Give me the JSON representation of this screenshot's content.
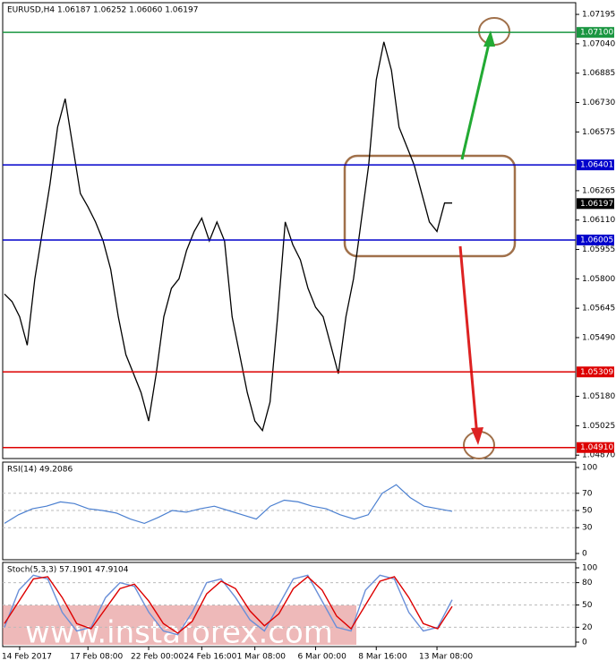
{
  "chart_data": [
    {
      "type": "line",
      "title": "EURUSD,H4  1.06187 1.06252 1.06060 1.06197",
      "color": "#000000",
      "categories": [
        null,
        null,
        "14 Feb 2017",
        null,
        null,
        null,
        null,
        null,
        null,
        null,
        null,
        "17 Feb 08:00",
        null,
        null,
        null,
        null,
        null,
        null,
        null,
        "22 Feb 00:00",
        null,
        null,
        null,
        null,
        null,
        null,
        "24 Feb 16:00",
        null,
        null,
        null,
        null,
        null,
        null,
        "1 Mar 08:00",
        null,
        null,
        null,
        null,
        null,
        null,
        null,
        "6 Mar 00:00",
        null,
        null,
        null,
        null,
        null,
        null,
        null,
        "8 Mar 16:00",
        null,
        null,
        null,
        null,
        null,
        null,
        null,
        "13 Mar 08:00",
        null,
        null
      ],
      "values": [
        1.0572,
        1.0568,
        1.056,
        1.0545,
        1.058,
        1.0605,
        1.063,
        1.066,
        1.0675,
        1.065,
        1.0625,
        1.0618,
        1.061,
        1.06,
        1.0585,
        1.056,
        1.054,
        1.053,
        1.052,
        1.0505,
        1.053,
        1.056,
        1.0575,
        1.058,
        1.0595,
        1.0605,
        1.0612,
        1.06,
        1.061,
        1.06,
        1.056,
        1.054,
        1.052,
        1.0505,
        1.05,
        1.0515,
        1.056,
        1.061,
        1.0598,
        1.059,
        1.0575,
        1.0565,
        1.056,
        1.0545,
        1.053,
        1.056,
        1.058,
        1.061,
        1.064,
        1.0685,
        1.0705,
        1.069,
        1.066,
        1.065,
        1.064,
        1.0625,
        1.061,
        1.0605,
        1.062,
        1.062
      ],
      "ylim": [
        1.04852,
        1.07252
      ],
      "yticks": [
        1.07195,
        {
          "value": 1.0704,
          "label": "1.07040"
        },
        1.06885,
        {
          "value": 1.0673,
          "label": "1.06730"
        },
        1.06575,
        1.06265,
        {
          "value": 1.0611,
          "label": "1.06110"
        },
        1.05955,
        {
          "value": 1.058,
          "label": "1.05800"
        },
        1.05645,
        {
          "value": 1.0549,
          "label": "1.05490"
        },
        {
          "value": 1.0518,
          "label": "1.05180"
        },
        1.05025,
        {
          "value": 1.0487,
          "label": "1.04870"
        }
      ],
      "levels": [
        {
          "value": 1.071,
          "label": "1.07100",
          "color": "#1a9641"
        },
        {
          "value": 1.06401,
          "color": "#0000cc"
        },
        {
          "value": 1.06005,
          "color": "#0000cc"
        },
        {
          "value": 1.05309,
          "color": "#dd0000"
        },
        {
          "value": 1.0491,
          "label": "1.04910",
          "color": "#dd0000"
        }
      ],
      "last": 1.06197,
      "watermark": "www.instaforex.com"
    },
    {
      "type": "line",
      "title": "RSI(14) 49.2086",
      "color": "#4a7fd0",
      "values": [
        35,
        45,
        52,
        55,
        60,
        58,
        52,
        50,
        47,
        40,
        35,
        42,
        50,
        48,
        52,
        55,
        50,
        45,
        40,
        55,
        62,
        60,
        55,
        52,
        45,
        40,
        45,
        70,
        80,
        65,
        55,
        52,
        49
      ],
      "ylim": [
        0,
        100
      ],
      "yticks": [
        100,
        70,
        50,
        30,
        0
      ]
    },
    {
      "type": "line",
      "title": "Stoch(5,3,3) 57.1901 47.9104",
      "series": [
        {
          "color": "#6a8fd8",
          "values": [
            20,
            70,
            90,
            85,
            40,
            15,
            20,
            60,
            80,
            75,
            40,
            15,
            10,
            40,
            80,
            85,
            60,
            30,
            15,
            50,
            85,
            90,
            55,
            20,
            15,
            70,
            90,
            85,
            40,
            15,
            20,
            57
          ]
        },
        {
          "color": "#dd0000",
          "values": [
            25,
            55,
            85,
            88,
            60,
            25,
            18,
            45,
            72,
            78,
            55,
            25,
            12,
            28,
            65,
            82,
            72,
            42,
            22,
            38,
            72,
            88,
            70,
            35,
            18,
            50,
            82,
            88,
            60,
            25,
            18,
            48
          ]
        }
      ],
      "ylim": [
        0,
        100
      ],
      "yticks": [
        100,
        80,
        50,
        20,
        0
      ]
    }
  ]
}
